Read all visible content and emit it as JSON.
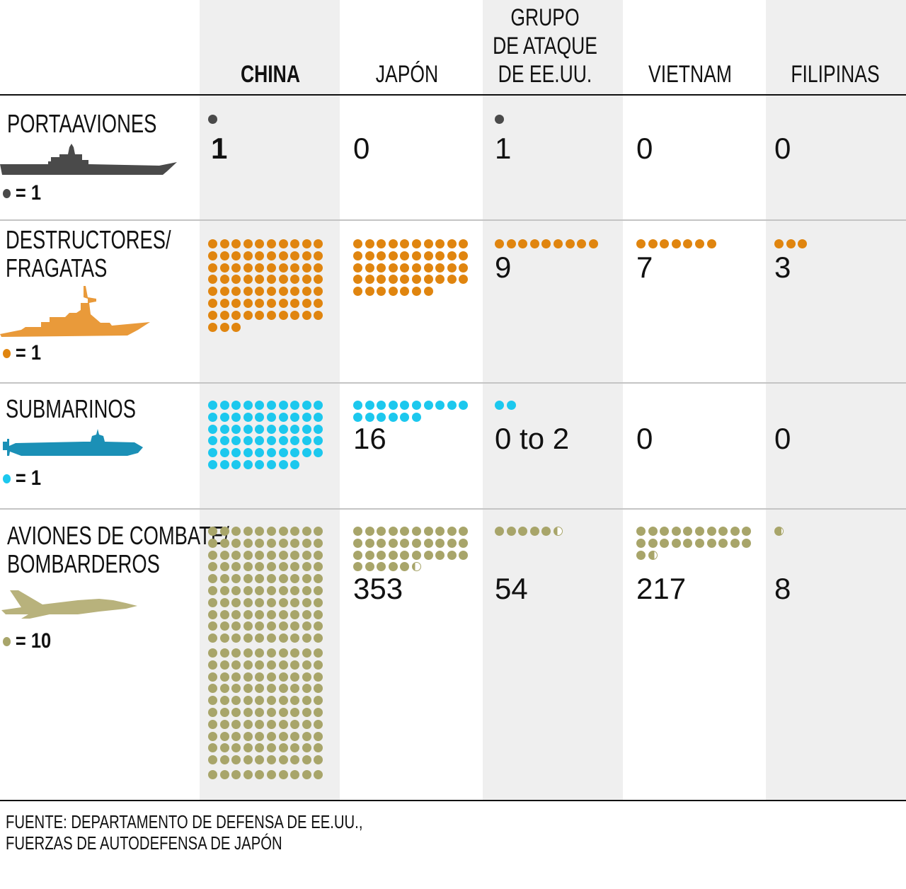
{
  "columns": [
    "CHINA",
    "JAPÓN",
    "GRUPO\nDE ATAQUE\nDE EE.UU.",
    "VIETNAM",
    "FILIPINAS"
  ],
  "header_lines_us": [
    "GRUPO",
    "DE ATAQUE",
    "DE EE.UU."
  ],
  "rows": [
    {
      "label_lines": [
        "PORTAAVIONES"
      ],
      "legend": "= 1",
      "unit": 1,
      "color": "#4a4a4a",
      "icon": "aircraft-carrier-icon",
      "silhouette_color": "#4a4a4a"
    },
    {
      "label_lines": [
        "DESTRUCTORES/",
        "FRAGATAS"
      ],
      "legend": "= 1",
      "unit": 1,
      "color": "#e0850f",
      "icon": "destroyer-icon",
      "silhouette_color": "#e99a3a"
    },
    {
      "label_lines": [
        "SUBMARINOS"
      ],
      "legend": "= 1",
      "unit": 1,
      "color": "#1cc8ee",
      "icon": "submarine-icon",
      "silhouette_color": "#1b90b6"
    },
    {
      "label_lines": [
        "AVIONES DE COMBATE/",
        "BOMBARDEROS"
      ],
      "legend": "= 10",
      "unit": 10,
      "color": "#a8a56a",
      "icon": "fighter-jet-icon",
      "silhouette_color": "#b8b27c"
    }
  ],
  "chart_data": {
    "type": "table",
    "categories": [
      "CHINA",
      "JAPÓN",
      "GRUPO DE ATAQUE DE EE.UU.",
      "VIETNAM",
      "FILIPINAS"
    ],
    "series": [
      {
        "name": "PORTAAVIONES",
        "values": [
          1,
          0,
          1,
          0,
          0
        ],
        "labels": [
          "1",
          "0",
          "1",
          "0",
          "0"
        ]
      },
      {
        "name": "DESTRUCTORES/FRAGATAS",
        "values": [
          73,
          47,
          9,
          7,
          3
        ],
        "labels": [
          null,
          null,
          "9",
          "7",
          "3"
        ]
      },
      {
        "name": "SUBMARINOS",
        "values": [
          58,
          16,
          2,
          0,
          0
        ],
        "labels": [
          null,
          "16",
          "0 to 2",
          "0",
          "0"
        ]
      },
      {
        "name": "AVIONES DE COMBATE/BOMBARDEROS",
        "values": [
          2100,
          353,
          54,
          217,
          8
        ],
        "labels": [
          null,
          "353",
          "54",
          "217",
          "8"
        ]
      }
    ]
  },
  "footer": [
    "FUENTE: DEPARTAMENTO DE DEFENSA DE EE.UU.,",
    "FUERZAS DE AUTODEFENSA DE JAPÓN"
  ]
}
